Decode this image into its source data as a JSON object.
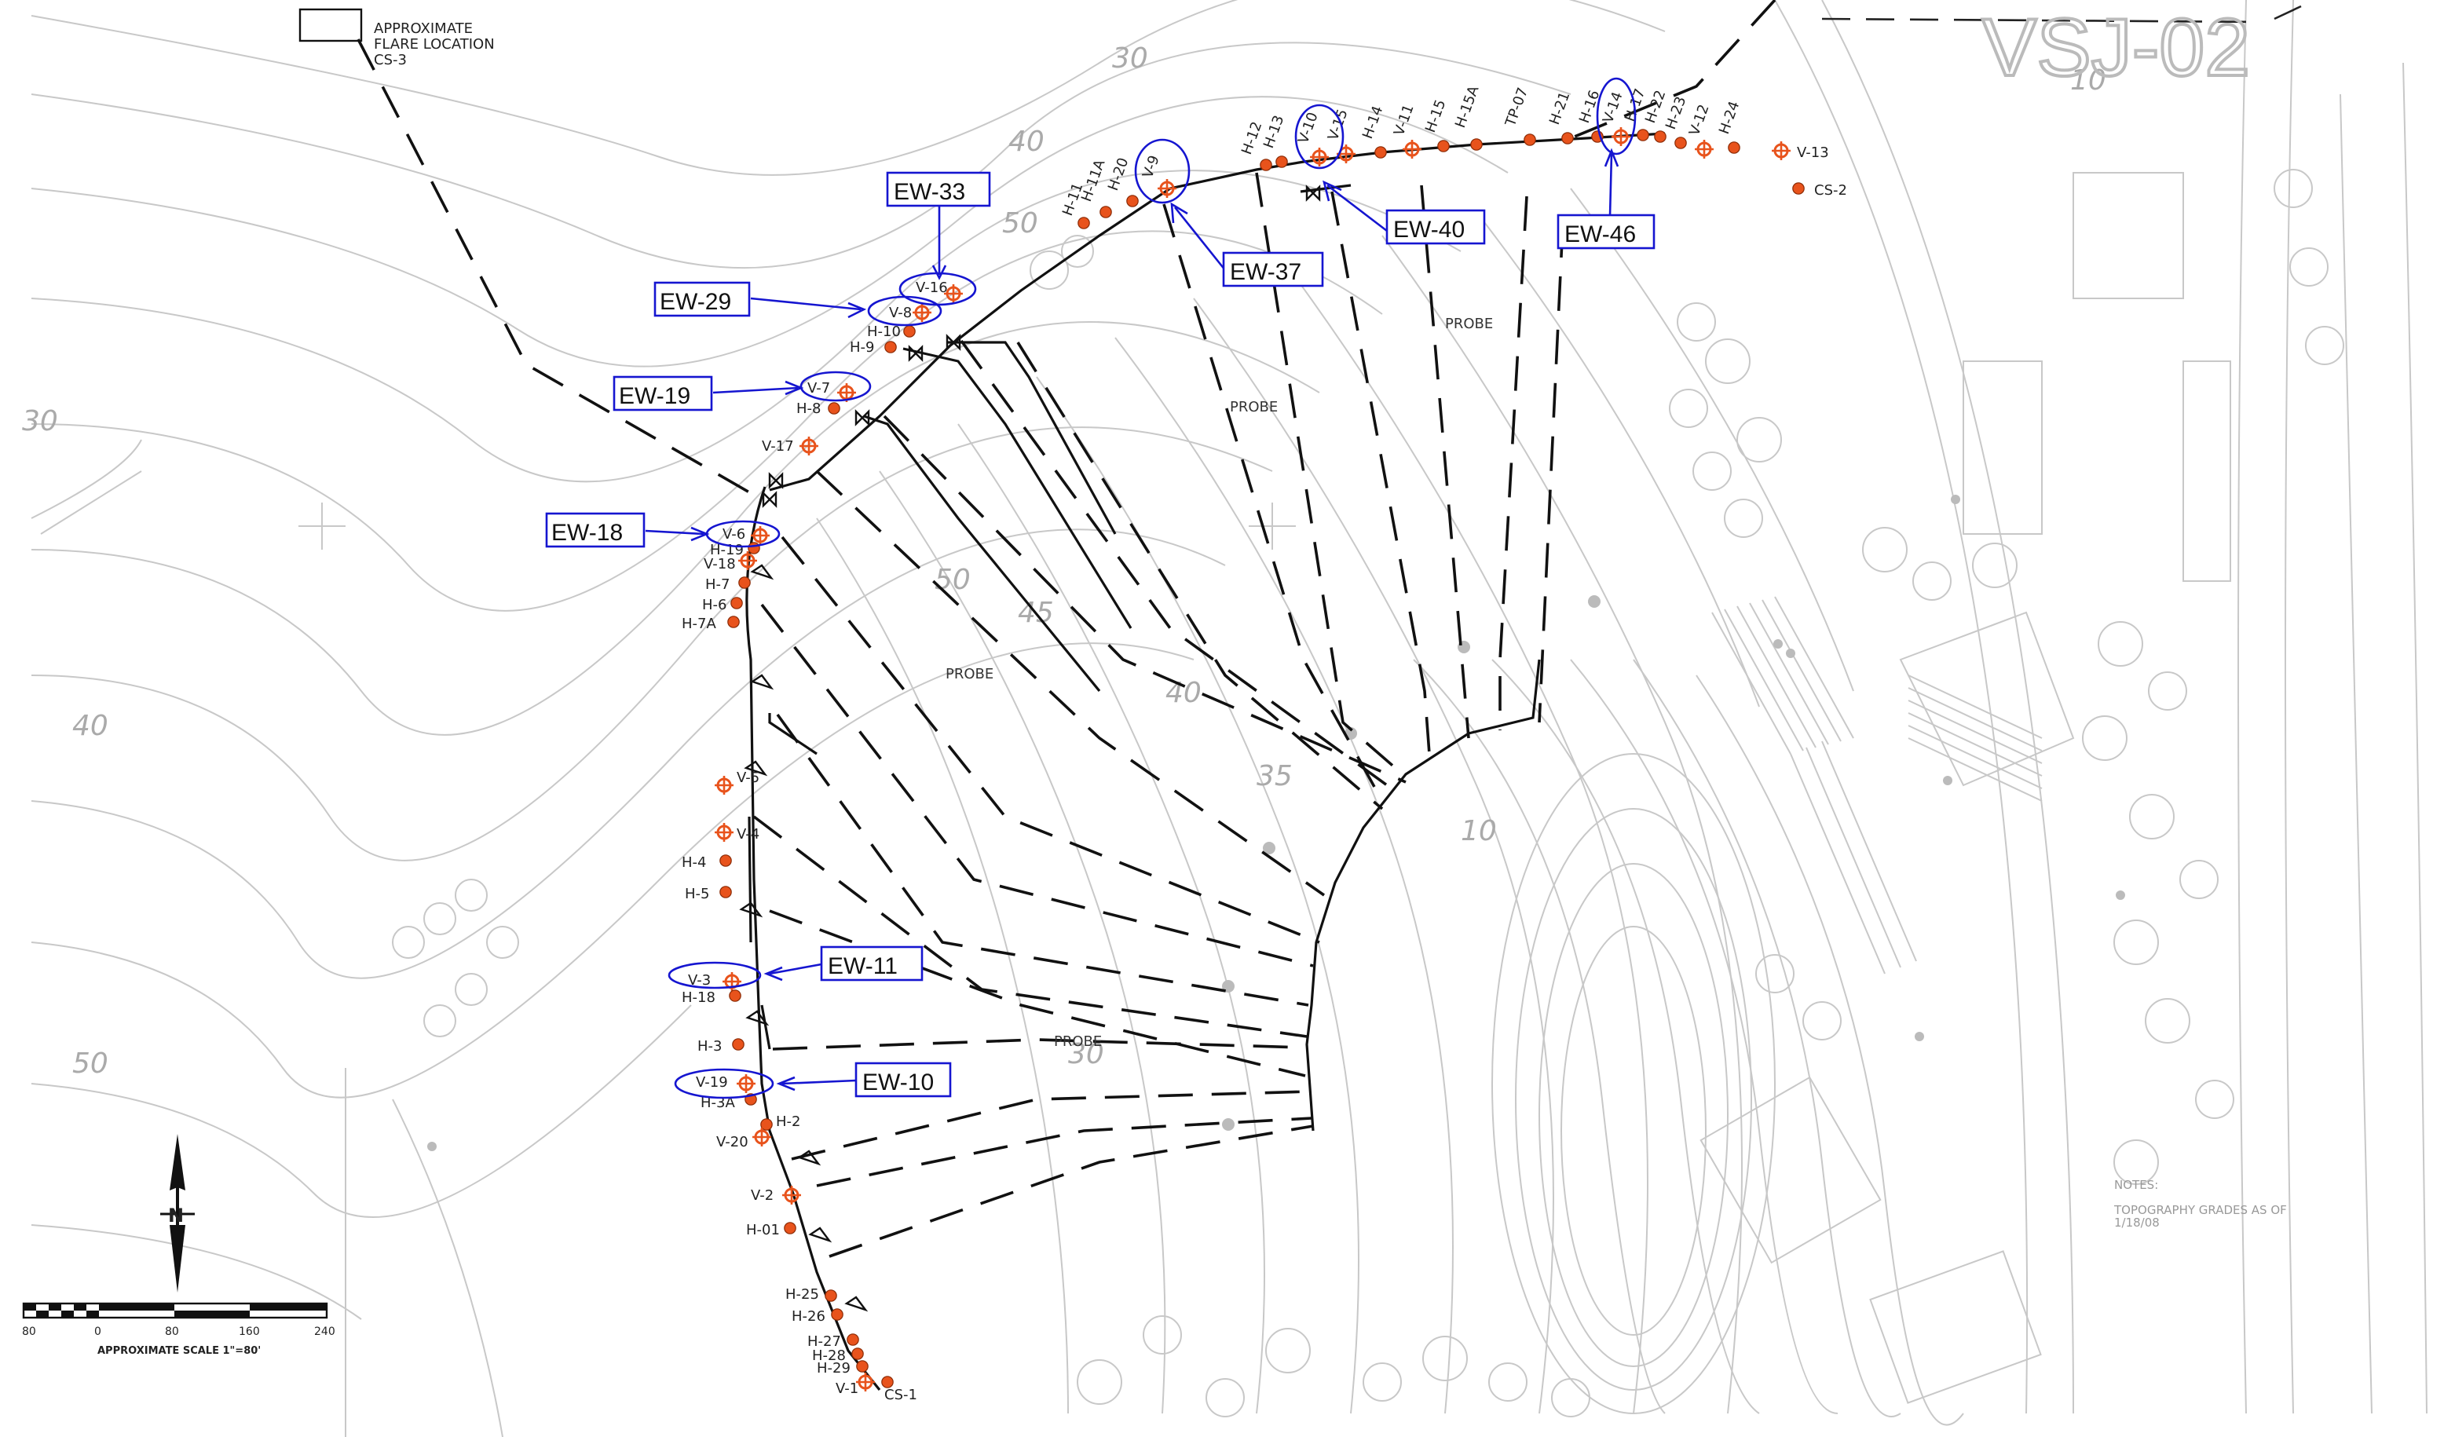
{
  "flare": {
    "line1": "APPROXIMATE",
    "line2": "FLARE LOCATION",
    "line3": "CS-3"
  },
  "area_label": "VSJ-02",
  "notes": {
    "title": "NOTES:",
    "line1": "TOPOGRAPHY GRADES AS OF",
    "line2": "1/18/08"
  },
  "probe_label": "PROBE",
  "scale": {
    "ticks": [
      "80",
      "0",
      "80",
      "160",
      "240"
    ],
    "caption": "APPROXIMATE SCALE 1\"=80'"
  },
  "north": "N",
  "contour_labels": [
    "30",
    "40",
    "50",
    "30",
    "40",
    "50",
    "50",
    "45",
    "40",
    "35",
    "30",
    "10",
    "10"
  ],
  "callouts": [
    "EW-33",
    "EW-29",
    "EW-19",
    "EW-18",
    "EW-11",
    "EW-10",
    "EW-37",
    "EW-40",
    "EW-46"
  ],
  "wells": [
    {
      "id": "H-11",
      "type": "H"
    },
    {
      "id": "H-11A",
      "type": "H"
    },
    {
      "id": "H-20",
      "type": "H"
    },
    {
      "id": "V-9",
      "type": "V"
    },
    {
      "id": "H-12",
      "type": "H"
    },
    {
      "id": "H-13",
      "type": "H"
    },
    {
      "id": "V-10",
      "type": "V"
    },
    {
      "id": "V-15",
      "type": "V"
    },
    {
      "id": "H-14",
      "type": "H"
    },
    {
      "id": "V-11",
      "type": "V"
    },
    {
      "id": "H-15",
      "type": "H"
    },
    {
      "id": "H-15A",
      "type": "H"
    },
    {
      "id": "TP-07",
      "type": "H"
    },
    {
      "id": "H-21",
      "type": "H"
    },
    {
      "id": "H-16",
      "type": "H"
    },
    {
      "id": "V-14",
      "type": "V"
    },
    {
      "id": "H-17",
      "type": "H"
    },
    {
      "id": "H-22",
      "type": "H"
    },
    {
      "id": "H-23",
      "type": "H"
    },
    {
      "id": "V-12",
      "type": "V"
    },
    {
      "id": "H-24",
      "type": "H"
    },
    {
      "id": "V-13",
      "type": "V"
    },
    {
      "id": "CS-2",
      "type": "H"
    },
    {
      "id": "V-16",
      "type": "V"
    },
    {
      "id": "V-8",
      "type": "V"
    },
    {
      "id": "H-10",
      "type": "H"
    },
    {
      "id": "H-9",
      "type": "H"
    },
    {
      "id": "V-7",
      "type": "V"
    },
    {
      "id": "H-8",
      "type": "H"
    },
    {
      "id": "V-17",
      "type": "V"
    },
    {
      "id": "V-6",
      "type": "V"
    },
    {
      "id": "H-19",
      "type": "H"
    },
    {
      "id": "V-18",
      "type": "V"
    },
    {
      "id": "H-7",
      "type": "H"
    },
    {
      "id": "H-6",
      "type": "H"
    },
    {
      "id": "H-7A",
      "type": "H"
    },
    {
      "id": "V-5",
      "type": "V"
    },
    {
      "id": "V-4",
      "type": "V"
    },
    {
      "id": "H-4",
      "type": "H"
    },
    {
      "id": "H-5",
      "type": "H"
    },
    {
      "id": "V-3",
      "type": "V"
    },
    {
      "id": "H-18",
      "type": "H"
    },
    {
      "id": "H-3",
      "type": "H"
    },
    {
      "id": "V-19",
      "type": "V"
    },
    {
      "id": "H-3A",
      "type": "H"
    },
    {
      "id": "H-2",
      "type": "H"
    },
    {
      "id": "V-20",
      "type": "V"
    },
    {
      "id": "V-2",
      "type": "V"
    },
    {
      "id": "H-01",
      "type": "H"
    },
    {
      "id": "H-25",
      "type": "H"
    },
    {
      "id": "H-26",
      "type": "H"
    },
    {
      "id": "H-27",
      "type": "H"
    },
    {
      "id": "H-28",
      "type": "H"
    },
    {
      "id": "H-29",
      "type": "H"
    },
    {
      "id": "V-1",
      "type": "V"
    },
    {
      "id": "CS-1",
      "type": "H"
    }
  ],
  "colors": {
    "well": "#e8531c",
    "callout": "#1515d0",
    "linework": "#111111",
    "topo": "#c4c4c4"
  }
}
